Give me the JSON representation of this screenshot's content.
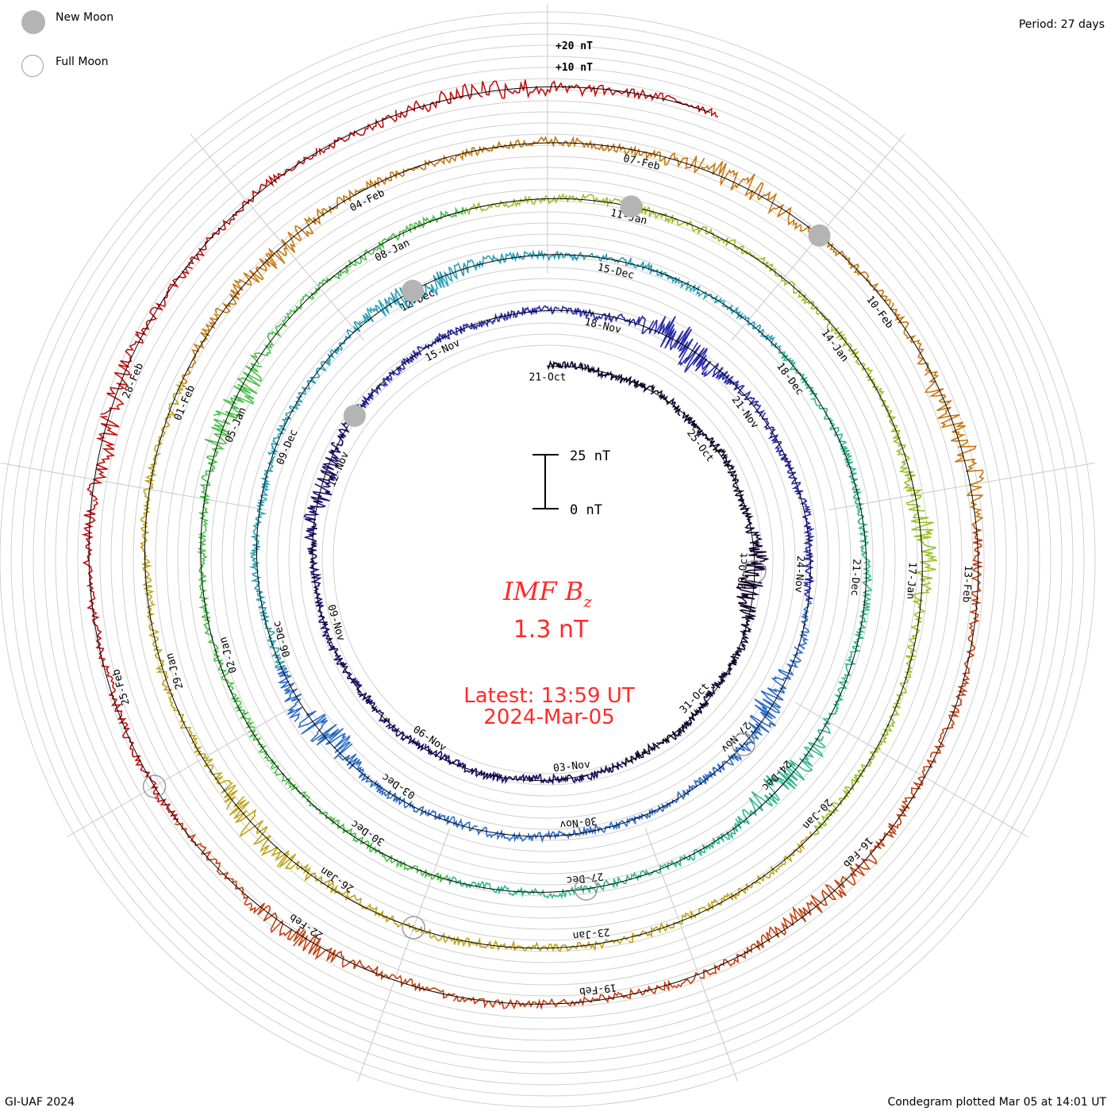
{
  "legend": {
    "new_moon": "New Moon",
    "full_moon": "Full Moon"
  },
  "period_label": "Period: 27 days",
  "footer": {
    "left": "GI-UAF 2024",
    "right": "Condegram plotted Mar 05 at 14:01 UT"
  },
  "center": {
    "parameter": "IMF B",
    "subscript": "z",
    "value": "1.3 nT",
    "latest": "Latest: 13:59 UT",
    "date": "2024-Mar-05",
    "scale_top": "25 nT",
    "scale_bottom": "0 nT",
    "text_color": "#ff2a2a"
  },
  "chart_data": {
    "type": "line",
    "title": "IMF Bz",
    "layout": "condegram spiral",
    "period_days": 27,
    "start_date": "2023-10-21",
    "end_date": "2024-03-05",
    "outer_labels": [
      "+20 nT",
      "+10 nT"
    ],
    "date_labels": [
      "21-Oct",
      "25-Oct",
      "28-Oct",
      "31-Oct",
      "03-Nov",
      "06-Nov",
      "09-Nov",
      "12-Nov",
      "15-Nov",
      "18-Nov",
      "21-Nov",
      "24-Nov",
      "27-Nov",
      "30-Nov",
      "03-Dec",
      "06-Dec",
      "09-Dec",
      "12-Dec",
      "15-Dec",
      "18-Dec",
      "21-Dec",
      "24-Dec",
      "27-Dec",
      "30-Dec",
      "02-Jan",
      "05-Jan",
      "08-Jan",
      "11-Jan",
      "14-Jan",
      "17-Jan",
      "20-Jan",
      "23-Jan",
      "26-Jan",
      "29-Jan",
      "01-Feb",
      "04-Feb",
      "07-Feb",
      "10-Feb",
      "13-Feb",
      "16-Feb",
      "19-Feb",
      "22-Feb",
      "25-Feb",
      "28-Feb"
    ],
    "new_moons": [
      "2023-11-13",
      "2023-12-12",
      "2024-01-11",
      "2024-02-09"
    ],
    "full_moons": [
      "2023-10-28",
      "2023-11-27",
      "2023-12-27",
      "2024-01-25",
      "2024-02-24"
    ],
    "rings": [
      {
        "name": "21-Oct to 17-Nov",
        "color": "#1a0a3c"
      },
      {
        "name": "17-Nov to 14-Dec",
        "color": "#2a1e9e"
      },
      {
        "name": "14-Dec to 10-Jan",
        "color": "#2e88c0"
      },
      {
        "name": "10-Jan to 06-Feb",
        "color": "#3cc080"
      },
      {
        "name": "06-Feb to 05-Mar",
        "color": "#b0b028"
      }
    ],
    "colors": [
      "#140530",
      "#1c0c6a",
      "#2a2aa8",
      "#2c6cc8",
      "#2aa0b8",
      "#30b88e",
      "#4cc04a",
      "#9cc028",
      "#c0a418",
      "#c47810",
      "#c44010",
      "#c01010"
    ],
    "latest_value": 1.3,
    "scale_nT": 25,
    "ring_spacing_nT": 10
  }
}
